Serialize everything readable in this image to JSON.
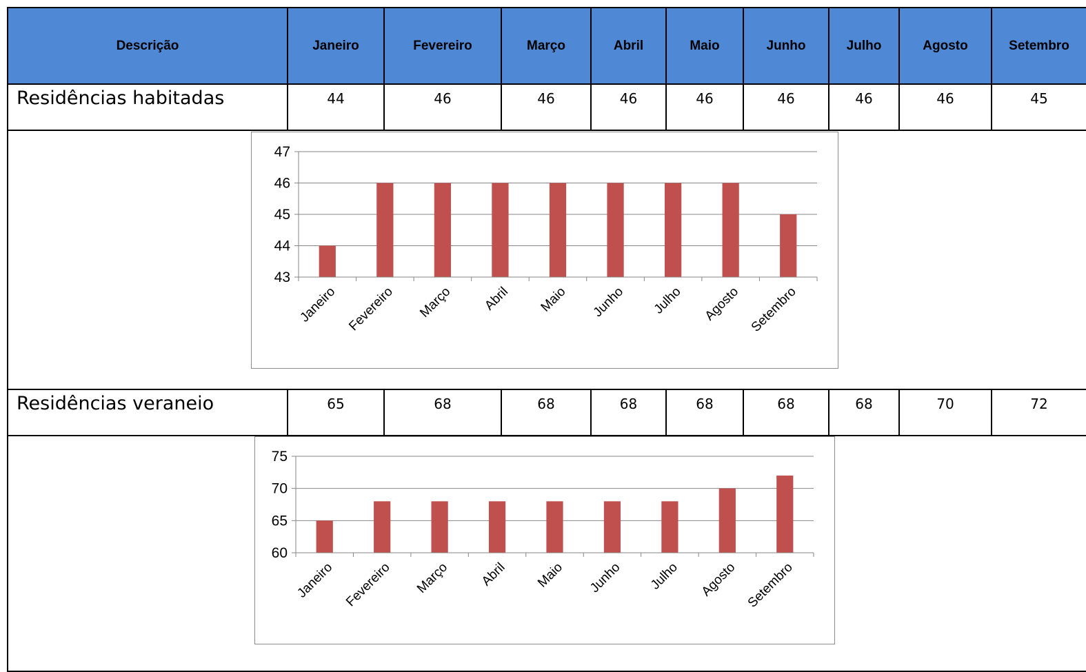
{
  "table": {
    "header_label": "Descrição",
    "months": [
      "Janeiro",
      "Fevereiro",
      "Março",
      "Abril",
      "Maio",
      "Junho",
      "Julho",
      "Agosto",
      "Setembro"
    ],
    "rows": [
      {
        "label": "Residências habitadas",
        "values": [
          "44",
          "46",
          "46",
          "46",
          "46",
          "46",
          "46",
          "46",
          "45"
        ]
      },
      {
        "label": "Residências veraneio",
        "values": [
          "65",
          "68",
          "68",
          "68",
          "68",
          "68",
          "68",
          "70",
          "72"
        ]
      }
    ]
  },
  "chart_data": [
    {
      "type": "bar",
      "title": "",
      "xlabel": "",
      "ylabel": "",
      "categories": [
        "Janeiro",
        "Fevereiro",
        "Março",
        "Abril",
        "Maio",
        "Junho",
        "Julho",
        "Agosto",
        "Setembro"
      ],
      "values": [
        44,
        46,
        46,
        46,
        46,
        46,
        46,
        46,
        45
      ],
      "ylim": [
        43,
        47
      ],
      "yticks": [
        43,
        44,
        45,
        46,
        47
      ],
      "grid": true,
      "legend": "none",
      "bar_color": "#c0504d"
    },
    {
      "type": "bar",
      "title": "",
      "xlabel": "",
      "ylabel": "",
      "categories": [
        "Janeiro",
        "Fevereiro",
        "Março",
        "Abril",
        "Maio",
        "Junho",
        "Julho",
        "Agosto",
        "Setembro"
      ],
      "values": [
        65,
        68,
        68,
        68,
        68,
        68,
        68,
        70,
        72
      ],
      "ylim": [
        60,
        75
      ],
      "yticks": [
        60,
        65,
        70,
        75
      ],
      "grid": true,
      "legend": "none",
      "bar_color": "#c0504d"
    }
  ]
}
